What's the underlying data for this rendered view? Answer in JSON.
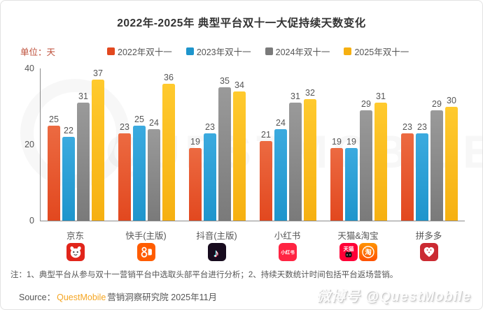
{
  "title": "2022年-2025年 典型平台双十一大促持续天数变化",
  "unit_label": "单位：天",
  "chart_data": {
    "type": "bar",
    "categories": [
      "京东",
      "快手(主版)",
      "抖音(主版)",
      "小红书",
      "天猫&淘宝",
      "拼多多"
    ],
    "series": [
      {
        "name": "2022年双十一",
        "color": "#E2481F",
        "color_light": "#EC6A41",
        "values": [
          25,
          23,
          19,
          21,
          19,
          23
        ]
      },
      {
        "name": "2023年双十一",
        "color": "#1E95CC",
        "color_light": "#3BAADF",
        "values": [
          22,
          25,
          23,
          24,
          19,
          23
        ]
      },
      {
        "name": "2024年双十一",
        "color": "#7A7A7A",
        "color_light": "#9A9A9A",
        "values": [
          31,
          24,
          35,
          31,
          29,
          29
        ]
      },
      {
        "name": "2025年双十一",
        "color": "#F6B011",
        "color_light": "#FFCA2E",
        "values": [
          37,
          36,
          34,
          32,
          31,
          30
        ]
      }
    ],
    "title": "2022年-2025年 典型平台双十一大促持续天数变化",
    "xlabel": "",
    "ylabel": "单位：天",
    "ylim": [
      0,
      40
    ],
    "yticks": [
      40,
      20,
      0
    ],
    "grid": false,
    "legend_position": "top",
    "value_labels": true
  },
  "platform_icons": [
    [
      "jd-app-icon"
    ],
    [
      "kuaishou-app-icon"
    ],
    [
      "douyin-app-icon"
    ],
    [
      "xiaohongshu-app-icon"
    ],
    [
      "tmall-app-icon",
      "taobao-app-icon"
    ],
    [
      "pinduoduo-app-icon"
    ]
  ],
  "note": "注：1、典型平台从参与双十一营销平台中选取头部平台进行分析；2、持续天数统计时间包括平台返场营销。",
  "source": {
    "prefix": "Source：",
    "brand": "QuestMobile",
    "suffix": "营销洞察研究院 2025年11月"
  },
  "watermark": {
    "prefix": "微博号",
    "handle": "@QuestMobile",
    "background_text": "QUESTMOBILE"
  }
}
